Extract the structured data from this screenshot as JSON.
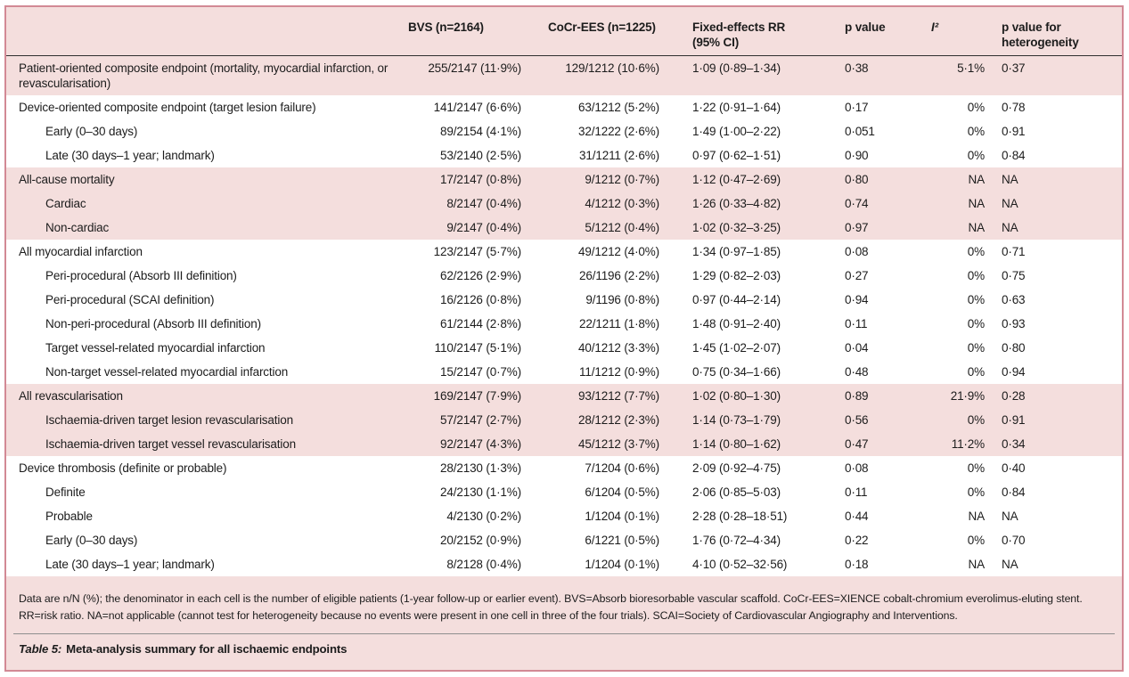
{
  "colors": {
    "page_background": "#ffffff",
    "table_pink": "#f4dedd",
    "band_white": "#ffffff",
    "outer_border_rose": "#d28995",
    "header_rule": "#2f2f2f",
    "caption_rule": "#8f8f8f",
    "text": "#1c1c1c"
  },
  "table": {
    "columns": [
      "",
      "BVS (n=2164)",
      "CoCr-EES (n=1225)",
      "Fixed-effects RR (95% CI)",
      "p value",
      "I²",
      "p value for heterogeneity"
    ],
    "rows": [
      {
        "label": "Patient-oriented composite endpoint (mortality, myocardial infarction, or revascularisation)",
        "indent": false,
        "band": "pink",
        "bvs": "255/2147 (11·9%)",
        "cocr": "129/1212 (10·6%)",
        "rr": "1·09 (0·89–1·34)",
        "p": "0·38",
        "i2": "5·1%",
        "phet": "0·37"
      },
      {
        "label": "Device-oriented composite endpoint (target lesion failure)",
        "indent": false,
        "band": "white",
        "bvs": "141/2147 (6·6%)",
        "cocr": "63/1212 (5·2%)",
        "rr": "1·22 (0·91–1·64)",
        "p": "0·17",
        "i2": "0%",
        "phet": "0·78"
      },
      {
        "label": "Early (0–30 days)",
        "indent": true,
        "band": "white",
        "bvs": "89/2154 (4·1%)",
        "cocr": "32/1222 (2·6%)",
        "rr": "1·49 (1·00–2·22)",
        "p": "0·051",
        "i2": "0%",
        "phet": "0·91"
      },
      {
        "label": "Late (30 days–1 year; landmark)",
        "indent": true,
        "band": "white",
        "bvs": "53/2140 (2·5%)",
        "cocr": "31/1211 (2·6%)",
        "rr": "0·97 (0·62–1·51)",
        "p": "0·90",
        "i2": "0%",
        "phet": "0·84"
      },
      {
        "label": "All-cause mortality",
        "indent": false,
        "band": "pink",
        "bvs": "17/2147 (0·8%)",
        "cocr": "9/1212 (0·7%)",
        "rr": "1·12 (0·47–2·69)",
        "p": "0·80",
        "i2": "NA",
        "phet": "NA"
      },
      {
        "label": "Cardiac",
        "indent": true,
        "band": "pink",
        "bvs": "8/2147 (0·4%)",
        "cocr": "4/1212 (0·3%)",
        "rr": "1·26 (0·33–4·82)",
        "p": "0·74",
        "i2": "NA",
        "phet": "NA"
      },
      {
        "label": "Non-cardiac",
        "indent": true,
        "band": "pink",
        "bvs": "9/2147 (0·4%)",
        "cocr": "5/1212 (0·4%)",
        "rr": "1·02 (0·32–3·25)",
        "p": "0·97",
        "i2": "NA",
        "phet": "NA"
      },
      {
        "label": "All myocardial infarction",
        "indent": false,
        "band": "white",
        "bvs": "123/2147 (5·7%)",
        "cocr": "49/1212 (4·0%)",
        "rr": "1·34 (0·97–1·85)",
        "p": "0·08",
        "i2": "0%",
        "phet": "0·71"
      },
      {
        "label": "Peri-procedural (Absorb III definition)",
        "indent": true,
        "band": "white",
        "bvs": "62/2126 (2·9%)",
        "cocr": "26/1196 (2·2%)",
        "rr": "1·29 (0·82–2·03)",
        "p": "0·27",
        "i2": "0%",
        "phet": "0·75"
      },
      {
        "label": "Peri-procedural (SCAI definition)",
        "indent": true,
        "band": "white",
        "bvs": "16/2126 (0·8%)",
        "cocr": "9/1196 (0·8%)",
        "rr": "0·97 (0·44–2·14)",
        "p": "0·94",
        "i2": "0%",
        "phet": "0·63"
      },
      {
        "label": "Non-peri-procedural (Absorb III definition)",
        "indent": true,
        "band": "white",
        "bvs": "61/2144 (2·8%)",
        "cocr": "22/1211 (1·8%)",
        "rr": "1·48 (0·91–2·40)",
        "p": "0·11",
        "i2": "0%",
        "phet": "0·93"
      },
      {
        "label": "Target vessel-related myocardial infarction",
        "indent": true,
        "band": "white",
        "bvs": "110/2147 (5·1%)",
        "cocr": "40/1212 (3·3%)",
        "rr": "1·45 (1·02–2·07)",
        "p": "0·04",
        "i2": "0%",
        "phet": "0·80"
      },
      {
        "label": "Non-target vessel-related myocardial infarction",
        "indent": true,
        "band": "white",
        "bvs": "15/2147 (0·7%)",
        "cocr": "11/1212 (0·9%)",
        "rr": "0·75 (0·34–1·66)",
        "p": "0·48",
        "i2": "0%",
        "phet": "0·94"
      },
      {
        "label": "All revascularisation",
        "indent": false,
        "band": "pink",
        "bvs": "169/2147 (7·9%)",
        "cocr": "93/1212 (7·7%)",
        "rr": "1·02 (0·80–1·30)",
        "p": "0·89",
        "i2": "21·9%",
        "phet": "0·28"
      },
      {
        "label": "Ischaemia-driven target lesion revascularisation",
        "indent": true,
        "band": "pink",
        "bvs": "57/2147 (2·7%)",
        "cocr": "28/1212 (2·3%)",
        "rr": "1·14 (0·73–1·79)",
        "p": "0·56",
        "i2": "0%",
        "phet": "0·91"
      },
      {
        "label": "Ischaemia-driven target vessel revascularisation",
        "indent": true,
        "band": "pink",
        "bvs": "92/2147 (4·3%)",
        "cocr": "45/1212 (3·7%)",
        "rr": "1·14 (0·80–1·62)",
        "p": "0·47",
        "i2": "11·2%",
        "phet": "0·34"
      },
      {
        "label": "Device thrombosis (definite or probable)",
        "indent": false,
        "band": "white",
        "bvs": "28/2130 (1·3%)",
        "cocr": "7/1204 (0·6%)",
        "rr": "2·09 (0·92–4·75)",
        "p": "0·08",
        "i2": "0%",
        "phet": "0·40"
      },
      {
        "label": "Definite",
        "indent": true,
        "band": "white",
        "bvs": "24/2130 (1·1%)",
        "cocr": "6/1204 (0·5%)",
        "rr": "2·06 (0·85–5·03)",
        "p": "0·11",
        "i2": "0%",
        "phet": "0·84"
      },
      {
        "label": "Probable",
        "indent": true,
        "band": "white",
        "bvs": "4/2130 (0·2%)",
        "cocr": "1/1204 (0·1%)",
        "rr": "2·28 (0·28–18·51)",
        "p": "0·44",
        "i2": "NA",
        "phet": "NA"
      },
      {
        "label": "Early (0–30 days)",
        "indent": true,
        "band": "white",
        "bvs": "20/2152 (0·9%)",
        "cocr": "6/1221 (0·5%)",
        "rr": "1·76 (0·72–4·34)",
        "p": "0·22",
        "i2": "0%",
        "phet": "0·70"
      },
      {
        "label": "Late (30 days–1 year; landmark)",
        "indent": true,
        "band": "white",
        "bvs": "8/2128 (0·4%)",
        "cocr": "1/1204 (0·1%)",
        "rr": "4·10 (0·52–32·56)",
        "p": "0·18",
        "i2": "NA",
        "phet": "NA"
      }
    ]
  },
  "footnote": "Data are n/N (%); the denominator in each cell is the number of eligible patients (1-year follow-up or earlier event). BVS=Absorb bioresorbable vascular scaffold. CoCr-EES=XIENCE cobalt-chromium everolimus-eluting stent. RR=risk ratio. NA=not applicable (cannot test for heterogeneity because no events were present in one cell in three of the four trials). SCAI=Society of Cardiovascular Angiography and Interventions.",
  "caption": {
    "prefix": "Table 5:",
    "text": "Meta-analysis summary for all ischaemic endpoints"
  }
}
